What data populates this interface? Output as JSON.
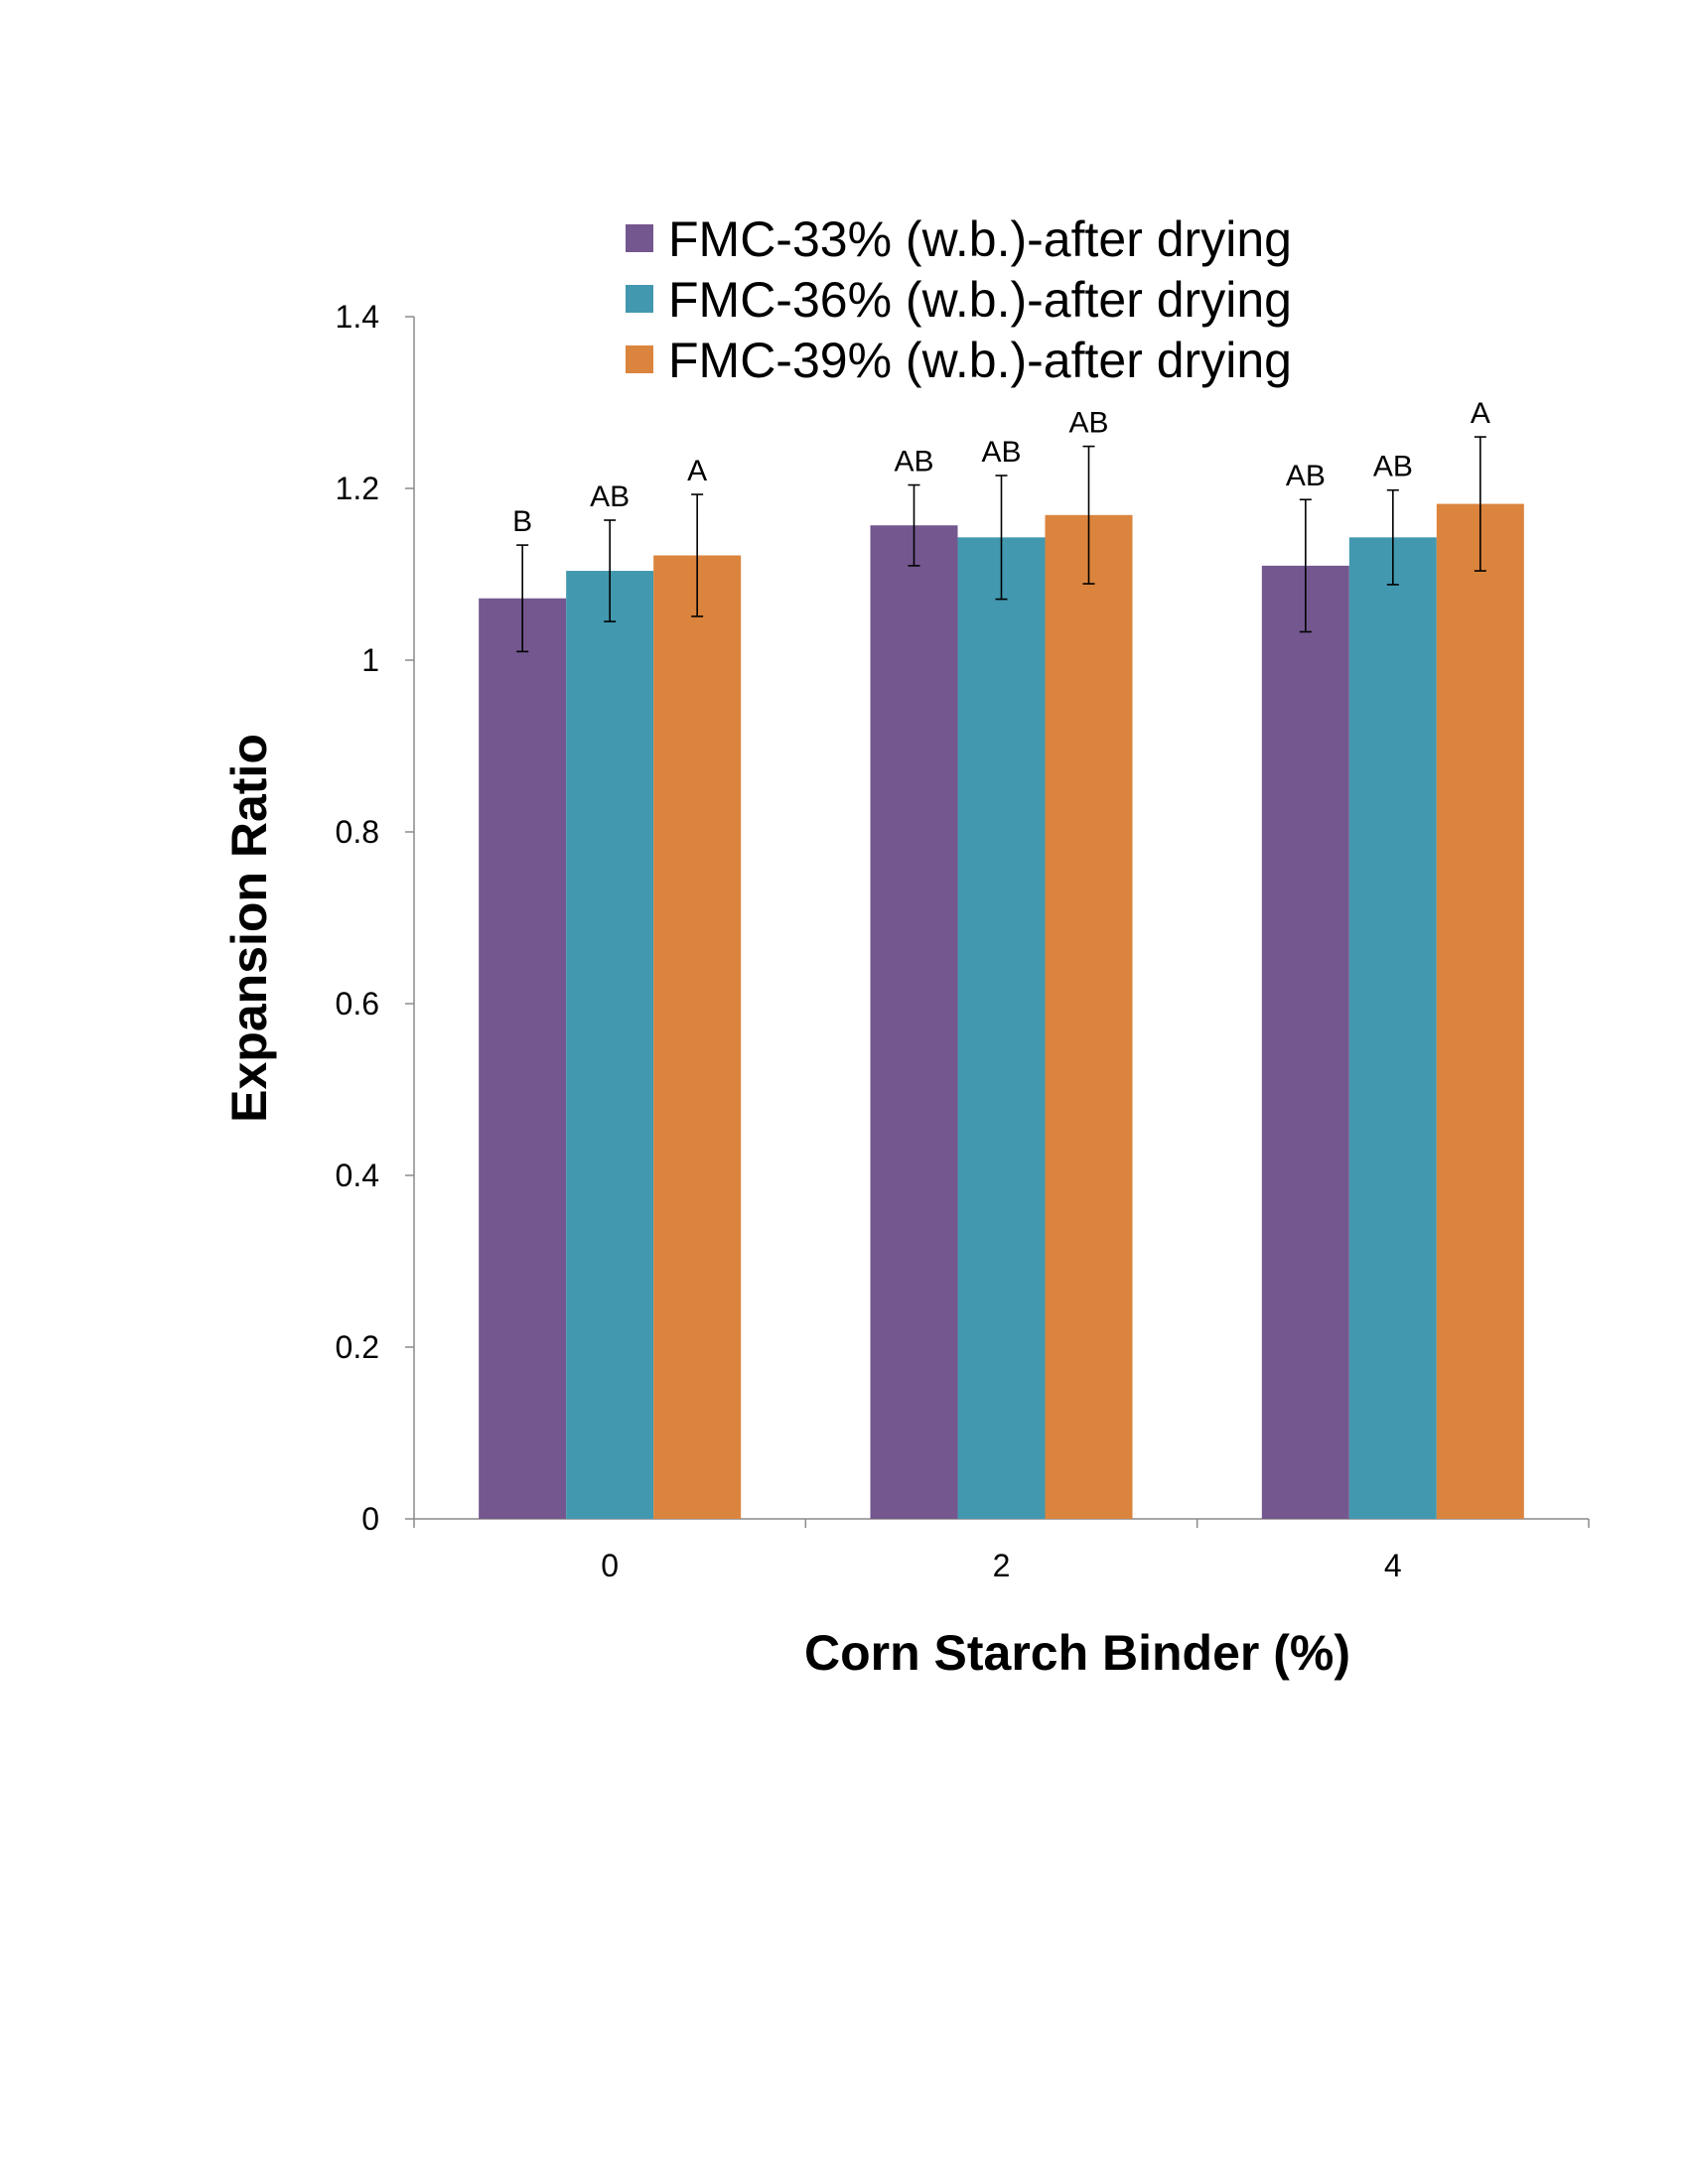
{
  "chart_data": {
    "type": "bar",
    "title": "",
    "xlabel": "Corn Starch Binder (%)",
    "ylabel": "Expansion Ratio",
    "categories": [
      "0",
      "2",
      "4"
    ],
    "ylim": [
      0,
      1.4
    ],
    "yticks": [
      "0",
      "0.2",
      "0.4",
      "0.6",
      "0.8",
      "1",
      "1.2",
      "1.4"
    ],
    "grid": false,
    "legend_position": "top",
    "series": [
      {
        "name": "FMC-33% (w.b.)-after drying",
        "color": "#74578E",
        "values": [
          1.072,
          1.157,
          1.11
        ],
        "errors": [
          0.062,
          0.047,
          0.077
        ],
        "labels": [
          "B",
          "AB",
          "AB"
        ]
      },
      {
        "name": "FMC-36% (w.b.)-after drying",
        "color": "#4298AF",
        "values": [
          1.104,
          1.143,
          1.143
        ],
        "errors": [
          0.059,
          0.072,
          0.055
        ],
        "labels": [
          "AB",
          "AB",
          "AB"
        ]
      },
      {
        "name": "FMC-39% (w.b.)-after drying",
        "color": "#DB843D",
        "values": [
          1.122,
          1.169,
          1.182
        ],
        "errors": [
          0.071,
          0.08,
          0.078
        ],
        "labels": [
          "A",
          "AB",
          "A"
        ]
      }
    ]
  }
}
